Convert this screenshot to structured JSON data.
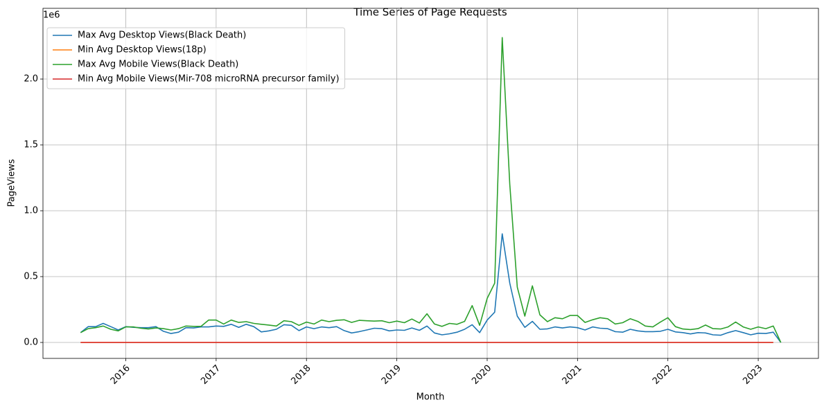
{
  "chart_data": {
    "type": "line",
    "title": "Time Series of Page Requests",
    "x_label": "Month",
    "y_label": "PageViews",
    "y_offset_label": "1e6",
    "x": [
      "2015-07",
      "2015-08",
      "2015-09",
      "2015-10",
      "2015-11",
      "2015-12",
      "2016-01",
      "2016-02",
      "2016-03",
      "2016-04",
      "2016-05",
      "2016-06",
      "2016-07",
      "2016-08",
      "2016-09",
      "2016-10",
      "2016-11",
      "2016-12",
      "2017-01",
      "2017-02",
      "2017-03",
      "2017-04",
      "2017-05",
      "2017-06",
      "2017-07",
      "2017-08",
      "2017-09",
      "2017-10",
      "2017-11",
      "2017-12",
      "2018-01",
      "2018-02",
      "2018-03",
      "2018-04",
      "2018-05",
      "2018-06",
      "2018-07",
      "2018-08",
      "2018-09",
      "2018-10",
      "2018-11",
      "2018-12",
      "2019-01",
      "2019-02",
      "2019-03",
      "2019-04",
      "2019-05",
      "2019-06",
      "2019-07",
      "2019-08",
      "2019-09",
      "2019-10",
      "2019-11",
      "2019-12",
      "2020-01",
      "2020-02",
      "2020-03",
      "2020-04",
      "2020-05",
      "2020-06",
      "2020-07",
      "2020-08",
      "2020-09",
      "2020-10",
      "2020-11",
      "2020-12",
      "2021-01",
      "2021-02",
      "2021-03",
      "2021-04",
      "2021-05",
      "2021-06",
      "2021-07",
      "2021-08",
      "2021-09",
      "2021-10",
      "2021-11",
      "2021-12",
      "2022-01",
      "2022-02",
      "2022-03",
      "2022-04",
      "2022-05",
      "2022-06",
      "2022-07",
      "2022-08",
      "2022-09",
      "2022-10",
      "2022-11",
      "2022-12",
      "2023-01",
      "2023-02",
      "2023-03",
      "2023-04"
    ],
    "series": [
      {
        "name": "Max Avg Desktop Views(Black Death)",
        "color": "#1f77b4",
        "values": [
          75000,
          120000,
          120000,
          145000,
          120000,
          95000,
          120000,
          115000,
          112000,
          112000,
          120000,
          85000,
          68000,
          78000,
          112000,
          110000,
          118000,
          118000,
          125000,
          122000,
          138000,
          115000,
          138000,
          120000,
          80000,
          88000,
          100000,
          135000,
          130000,
          90000,
          118000,
          105000,
          118000,
          112000,
          120000,
          90000,
          72000,
          82000,
          95000,
          108000,
          105000,
          88000,
          95000,
          92000,
          110000,
          92000,
          125000,
          72000,
          58000,
          66000,
          78000,
          100000,
          135000,
          75000,
          170000,
          230000,
          825000,
          450000,
          200000,
          115000,
          160000,
          100000,
          103000,
          118000,
          110000,
          118000,
          112000,
          95000,
          118000,
          108000,
          105000,
          82000,
          78000,
          100000,
          88000,
          82000,
          82000,
          85000,
          100000,
          80000,
          75000,
          65000,
          75000,
          72000,
          58000,
          55000,
          75000,
          90000,
          75000,
          58000,
          70000,
          68000,
          78000,
          0
        ]
      },
      {
        "name": "Min Avg Desktop Views(18p)",
        "color": "#ff7f0e",
        "values": [
          0,
          0,
          0,
          0,
          0,
          0,
          0,
          0,
          0,
          0,
          0,
          0,
          0,
          0,
          0,
          0,
          0,
          0,
          0,
          0,
          0,
          0,
          0,
          0,
          0,
          0,
          0,
          0,
          0,
          0,
          0,
          0,
          0,
          0,
          0,
          0,
          0,
          0,
          0,
          0,
          0,
          0,
          0,
          0,
          0,
          0,
          0,
          0,
          0,
          0,
          0,
          0,
          0,
          0,
          0,
          0,
          0,
          0,
          0,
          0,
          0,
          0,
          0,
          0,
          0,
          0,
          0,
          0,
          0,
          0,
          0,
          0,
          0,
          0,
          0,
          0,
          0,
          0,
          0,
          0,
          0,
          0,
          0,
          0,
          0,
          0,
          0,
          0,
          0,
          0,
          0,
          0,
          0,
          null
        ]
      },
      {
        "name": "Max Avg Mobile Views(Black Death)",
        "color": "#2ca02c",
        "values": [
          75000,
          105000,
          112000,
          125000,
          100000,
          88000,
          118000,
          118000,
          108000,
          102000,
          110000,
          105000,
          95000,
          105000,
          125000,
          122000,
          122000,
          170000,
          170000,
          140000,
          170000,
          152000,
          158000,
          145000,
          138000,
          132000,
          125000,
          165000,
          158000,
          130000,
          155000,
          140000,
          170000,
          158000,
          168000,
          172000,
          152000,
          168000,
          165000,
          162000,
          165000,
          150000,
          162000,
          150000,
          178000,
          148000,
          218000,
          140000,
          122000,
          145000,
          138000,
          160000,
          280000,
          130000,
          335000,
          450000,
          2315000,
          1200000,
          420000,
          200000,
          430000,
          210000,
          158000,
          188000,
          180000,
          205000,
          205000,
          152000,
          172000,
          188000,
          180000,
          140000,
          150000,
          180000,
          160000,
          125000,
          118000,
          155000,
          188000,
          120000,
          102000,
          98000,
          105000,
          132000,
          105000,
          102000,
          118000,
          155000,
          118000,
          100000,
          118000,
          105000,
          125000,
          0
        ]
      },
      {
        "name": "Min Avg Mobile Views(Mir-708 microRNA precursor family)",
        "color": "#d62728",
        "values": [
          0,
          0,
          0,
          0,
          0,
          0,
          0,
          0,
          0,
          0,
          0,
          0,
          0,
          0,
          0,
          0,
          0,
          0,
          0,
          0,
          0,
          0,
          0,
          0,
          0,
          0,
          0,
          0,
          0,
          0,
          0,
          0,
          0,
          0,
          0,
          0,
          0,
          0,
          0,
          0,
          0,
          0,
          0,
          0,
          0,
          0,
          0,
          0,
          0,
          0,
          0,
          0,
          0,
          0,
          0,
          0,
          0,
          0,
          0,
          0,
          0,
          0,
          0,
          0,
          0,
          0,
          0,
          0,
          0,
          0,
          0,
          0,
          0,
          0,
          0,
          0,
          0,
          0,
          0,
          0,
          0,
          0,
          0,
          0,
          0,
          0,
          0,
          0,
          0,
          0,
          0,
          0,
          0,
          null
        ]
      }
    ],
    "xlim": [
      "2015-02",
      "2023-09"
    ],
    "xticks": [
      {
        "value": "2016-01",
        "label": "2016"
      },
      {
        "value": "2017-01",
        "label": "2017"
      },
      {
        "value": "2018-01",
        "label": "2018"
      },
      {
        "value": "2019-01",
        "label": "2019"
      },
      {
        "value": "2020-01",
        "label": "2020"
      },
      {
        "value": "2021-01",
        "label": "2021"
      },
      {
        "value": "2022-01",
        "label": "2022"
      },
      {
        "value": "2023-01",
        "label": "2023"
      }
    ],
    "ylim": [
      -121000,
      2537000
    ],
    "yticks": [
      {
        "value": 0,
        "label": "0.0"
      },
      {
        "value": 500000,
        "label": "0.5"
      },
      {
        "value": 1000000,
        "label": "1.0"
      },
      {
        "value": 1500000,
        "label": "1.5"
      },
      {
        "value": 2000000,
        "label": "2.0"
      }
    ],
    "grid": true,
    "legend": "upper left"
  }
}
